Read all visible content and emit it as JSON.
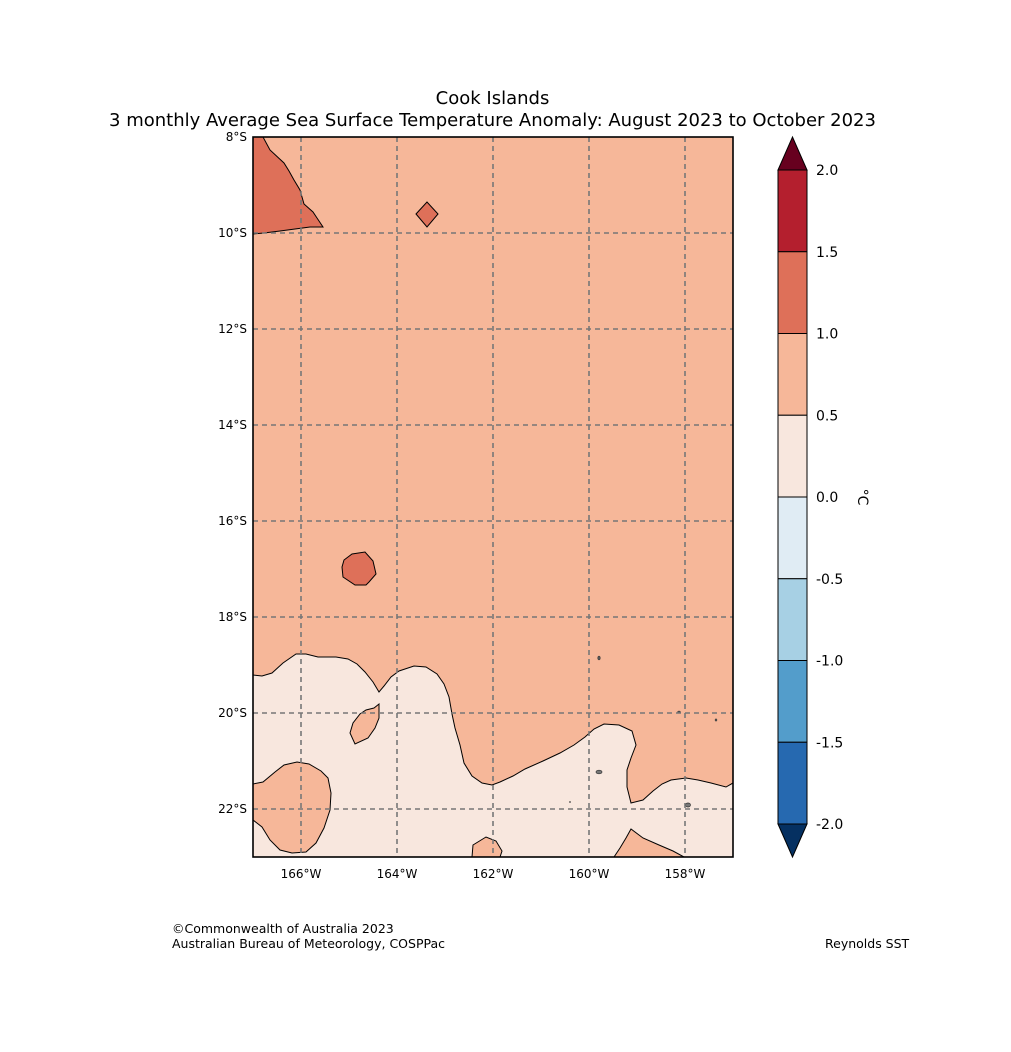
{
  "header": {
    "title": "Cook Islands",
    "subtitle": "3 monthly Average Sea Surface Temperature Anomaly: August 2023 to October 2023"
  },
  "map": {
    "lat_labels": [
      "8°S",
      "10°S",
      "12°S",
      "14°S",
      "16°S",
      "18°S",
      "20°S",
      "22°S"
    ],
    "lon_labels": [
      "166°W",
      "164°W",
      "162°W",
      "160°W",
      "158°W"
    ],
    "lat_range": [
      -23,
      -8
    ],
    "lon_range": [
      -167,
      -157
    ],
    "gridlines": "dashed",
    "background_class": "0.5 to 1.0",
    "colors": {
      "0.5 to 1.0": "#f6b799",
      "1.0 to 1.5": "#de7059",
      "0.0 to 0.5": "#f8e7de",
      "land": "#555555"
    }
  },
  "colorbar": {
    "unit": "°C",
    "ticks": [
      "2.0",
      "1.5",
      "1.0",
      "0.5",
      "0.0",
      "-0.5",
      "-1.0",
      "-1.5",
      "-2.0"
    ],
    "levels": [
      {
        "range": "> 2.0",
        "color": "#67001f"
      },
      {
        "range": "1.5 to 2.0",
        "color": "#b41f2e"
      },
      {
        "range": "1.0 to 1.5",
        "color": "#de7059"
      },
      {
        "range": "0.5 to 1.0",
        "color": "#f6b799"
      },
      {
        "range": "0.0 to 0.5",
        "color": "#f8e7de"
      },
      {
        "range": "-0.5 to 0.0",
        "color": "#e0ecf4"
      },
      {
        "range": "-1.0 to -0.5",
        "color": "#a7d0e4"
      },
      {
        "range": "-1.5 to -1.0",
        "color": "#539dcb"
      },
      {
        "range": "-2.0 to -1.5",
        "color": "#2669b0"
      },
      {
        "range": "< -2.0",
        "color": "#053061"
      }
    ]
  },
  "footer": {
    "copyright": "©Commonwealth of Australia 2023",
    "agency": "Australian Bureau of Meteorology, COSPPac",
    "source": "Reynolds SST"
  }
}
